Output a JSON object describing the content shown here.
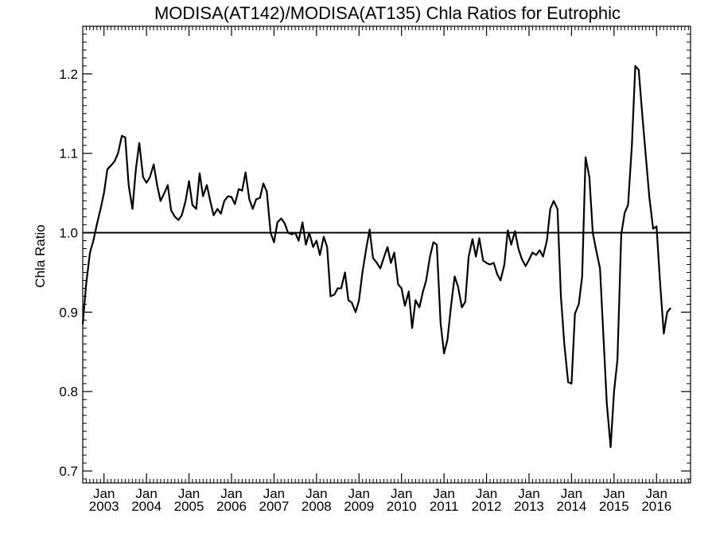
{
  "chart_data": {
    "type": "line",
    "title": "MODISA(AT142)/MODISA(AT135)  Chla Ratios for Eutrophic",
    "ylabel": "Chla Ratio",
    "xlabel": "",
    "xlim": [
      2002.5,
      2016.8
    ],
    "ylim": [
      0.685,
      1.26
    ],
    "y_ticks": [
      0.7,
      0.8,
      0.9,
      1.0,
      1.1,
      1.2
    ],
    "y_tick_labels": [
      "0.7",
      "0.8",
      "0.9",
      "1.0",
      "1.1",
      "1.2"
    ],
    "x_ticks": [
      2003,
      2004,
      2005,
      2006,
      2007,
      2008,
      2009,
      2010,
      2011,
      2012,
      2013,
      2014,
      2015,
      2016
    ],
    "x_tick_labels": [
      {
        "month": "Jan",
        "year": "2003"
      },
      {
        "month": "Jan",
        "year": "2004"
      },
      {
        "month": "Jan",
        "year": "2005"
      },
      {
        "month": "Jan",
        "year": "2006"
      },
      {
        "month": "Jan",
        "year": "2007"
      },
      {
        "month": "Jan",
        "year": "2008"
      },
      {
        "month": "Jan",
        "year": "2009"
      },
      {
        "month": "Jan",
        "year": "2010"
      },
      {
        "month": "Jan",
        "year": "2011"
      },
      {
        "month": "Jan",
        "year": "2012"
      },
      {
        "month": "Jan",
        "year": "2013"
      },
      {
        "month": "Jan",
        "year": "2014"
      },
      {
        "month": "Jan",
        "year": "2015"
      },
      {
        "month": "Jan",
        "year": "2016"
      }
    ],
    "reference_line": 1.0,
    "series": [
      {
        "points": [
          [
            2002.5,
            0.885
          ],
          [
            2002.58,
            0.935
          ],
          [
            2002.67,
            0.975
          ],
          [
            2002.75,
            0.99
          ],
          [
            2002.83,
            1.01
          ],
          [
            2002.92,
            1.03
          ],
          [
            2003.0,
            1.05
          ],
          [
            2003.08,
            1.08
          ],
          [
            2003.17,
            1.085
          ],
          [
            2003.25,
            1.09
          ],
          [
            2003.33,
            1.1
          ],
          [
            2003.42,
            1.122
          ],
          [
            2003.5,
            1.12
          ],
          [
            2003.58,
            1.06
          ],
          [
            2003.67,
            1.03
          ],
          [
            2003.75,
            1.08
          ],
          [
            2003.83,
            1.113
          ],
          [
            2003.92,
            1.07
          ],
          [
            2004.0,
            1.063
          ],
          [
            2004.08,
            1.07
          ],
          [
            2004.17,
            1.086
          ],
          [
            2004.25,
            1.06
          ],
          [
            2004.33,
            1.04
          ],
          [
            2004.42,
            1.05
          ],
          [
            2004.5,
            1.06
          ],
          [
            2004.58,
            1.028
          ],
          [
            2004.67,
            1.02
          ],
          [
            2004.75,
            1.016
          ],
          [
            2004.83,
            1.022
          ],
          [
            2004.92,
            1.04
          ],
          [
            2005.0,
            1.065
          ],
          [
            2005.08,
            1.035
          ],
          [
            2005.17,
            1.03
          ],
          [
            2005.25,
            1.075
          ],
          [
            2005.33,
            1.046
          ],
          [
            2005.42,
            1.06
          ],
          [
            2005.5,
            1.04
          ],
          [
            2005.58,
            1.022
          ],
          [
            2005.67,
            1.03
          ],
          [
            2005.75,
            1.024
          ],
          [
            2005.83,
            1.04
          ],
          [
            2005.92,
            1.046
          ],
          [
            2006.0,
            1.045
          ],
          [
            2006.08,
            1.036
          ],
          [
            2006.17,
            1.055
          ],
          [
            2006.25,
            1.053
          ],
          [
            2006.33,
            1.076
          ],
          [
            2006.42,
            1.042
          ],
          [
            2006.5,
            1.03
          ],
          [
            2006.58,
            1.042
          ],
          [
            2006.67,
            1.044
          ],
          [
            2006.75,
            1.062
          ],
          [
            2006.83,
            1.052
          ],
          [
            2006.92,
            1.0
          ],
          [
            2007.0,
            0.988
          ],
          [
            2007.08,
            1.013
          ],
          [
            2007.17,
            1.018
          ],
          [
            2007.25,
            1.012
          ],
          [
            2007.33,
            1.0
          ],
          [
            2007.42,
            0.998
          ],
          [
            2007.5,
            1.0
          ],
          [
            2007.58,
            0.99
          ],
          [
            2007.67,
            1.013
          ],
          [
            2007.75,
            0.985
          ],
          [
            2007.83,
            1.0
          ],
          [
            2007.92,
            0.982
          ],
          [
            2008.0,
            0.99
          ],
          [
            2008.08,
            0.972
          ],
          [
            2008.17,
            0.995
          ],
          [
            2008.25,
            0.982
          ],
          [
            2008.33,
            0.92
          ],
          [
            2008.42,
            0.922
          ],
          [
            2008.5,
            0.93
          ],
          [
            2008.58,
            0.93
          ],
          [
            2008.67,
            0.95
          ],
          [
            2008.75,
            0.915
          ],
          [
            2008.83,
            0.912
          ],
          [
            2008.92,
            0.9
          ],
          [
            2009.0,
            0.915
          ],
          [
            2009.08,
            0.95
          ],
          [
            2009.17,
            0.98
          ],
          [
            2009.25,
            1.004
          ],
          [
            2009.33,
            0.968
          ],
          [
            2009.42,
            0.962
          ],
          [
            2009.5,
            0.955
          ],
          [
            2009.58,
            0.968
          ],
          [
            2009.67,
            0.982
          ],
          [
            2009.75,
            0.962
          ],
          [
            2009.83,
            0.975
          ],
          [
            2009.92,
            0.935
          ],
          [
            2010.0,
            0.93
          ],
          [
            2010.08,
            0.908
          ],
          [
            2010.17,
            0.926
          ],
          [
            2010.25,
            0.88
          ],
          [
            2010.33,
            0.915
          ],
          [
            2010.42,
            0.906
          ],
          [
            2010.5,
            0.925
          ],
          [
            2010.58,
            0.94
          ],
          [
            2010.67,
            0.97
          ],
          [
            2010.75,
            0.988
          ],
          [
            2010.83,
            0.985
          ],
          [
            2010.92,
            0.886
          ],
          [
            2011.0,
            0.848
          ],
          [
            2011.08,
            0.865
          ],
          [
            2011.17,
            0.91
          ],
          [
            2011.25,
            0.945
          ],
          [
            2011.33,
            0.932
          ],
          [
            2011.42,
            0.906
          ],
          [
            2011.5,
            0.913
          ],
          [
            2011.58,
            0.97
          ],
          [
            2011.67,
            0.992
          ],
          [
            2011.75,
            0.97
          ],
          [
            2011.83,
            0.993
          ],
          [
            2011.92,
            0.965
          ],
          [
            2012.0,
            0.962
          ],
          [
            2012.08,
            0.96
          ],
          [
            2012.17,
            0.962
          ],
          [
            2012.25,
            0.948
          ],
          [
            2012.33,
            0.94
          ],
          [
            2012.42,
            0.96
          ],
          [
            2012.5,
            1.003
          ],
          [
            2012.58,
            0.985
          ],
          [
            2012.67,
            1.002
          ],
          [
            2012.75,
            0.98
          ],
          [
            2012.83,
            0.967
          ],
          [
            2012.92,
            0.958
          ],
          [
            2013.0,
            0.966
          ],
          [
            2013.08,
            0.975
          ],
          [
            2013.17,
            0.972
          ],
          [
            2013.25,
            0.978
          ],
          [
            2013.33,
            0.97
          ],
          [
            2013.42,
            0.99
          ],
          [
            2013.5,
            1.03
          ],
          [
            2013.58,
            1.04
          ],
          [
            2013.67,
            1.03
          ],
          [
            2013.75,
            0.92
          ],
          [
            2013.83,
            0.86
          ],
          [
            2013.92,
            0.812
          ],
          [
            2014.0,
            0.81
          ],
          [
            2014.08,
            0.898
          ],
          [
            2014.17,
            0.91
          ],
          [
            2014.25,
            0.945
          ],
          [
            2014.33,
            1.095
          ],
          [
            2014.42,
            1.07
          ],
          [
            2014.5,
            1.0
          ],
          [
            2014.58,
            0.978
          ],
          [
            2014.67,
            0.955
          ],
          [
            2014.75,
            0.87
          ],
          [
            2014.83,
            0.785
          ],
          [
            2014.92,
            0.73
          ],
          [
            2015.0,
            0.8
          ],
          [
            2015.08,
            0.84
          ],
          [
            2015.17,
            0.998
          ],
          [
            2015.25,
            1.025
          ],
          [
            2015.33,
            1.035
          ],
          [
            2015.42,
            1.11
          ],
          [
            2015.5,
            1.21
          ],
          [
            2015.58,
            1.205
          ],
          [
            2015.67,
            1.145
          ],
          [
            2015.75,
            1.095
          ],
          [
            2015.83,
            1.045
          ],
          [
            2015.92,
            1.005
          ],
          [
            2016.0,
            1.008
          ],
          [
            2016.08,
            0.94
          ],
          [
            2016.17,
            0.873
          ],
          [
            2016.25,
            0.9
          ],
          [
            2016.33,
            0.905
          ]
        ]
      }
    ]
  }
}
